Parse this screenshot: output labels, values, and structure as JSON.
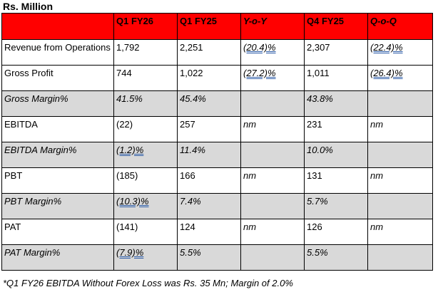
{
  "unit_label": "Rs. Million",
  "headers": [
    "",
    "Q1 FY26",
    "Q1 FY25",
    "Y-o-Y",
    "Q4 FY25",
    "Q-o-Q"
  ],
  "rows": [
    {
      "label": "Revenue from Operations",
      "q1fy26": "1,792",
      "q1fy25": "2,251",
      "yoy": "(20.4)%",
      "q4fy25": "2,307",
      "qoq": "(22.4)%"
    },
    {
      "label": "Gross Profit",
      "q1fy26": "744",
      "q1fy25": "1,022",
      "yoy": "(27.2)%",
      "q4fy25": "1,011",
      "qoq": "(26.4)%"
    },
    {
      "label": "Gross Margin%",
      "q1fy26": "41.5%",
      "q1fy25": "45.4%",
      "yoy": "",
      "q4fy25": "43.8%",
      "qoq": ""
    },
    {
      "label": "EBITDA",
      "q1fy26": "(22)",
      "q1fy25": "257",
      "yoy": "nm",
      "q4fy25": "231",
      "qoq": "nm"
    },
    {
      "label": "EBITDA Margin%",
      "q1fy26": "(1.2)%",
      "q1fy25": "11.4%",
      "yoy": "",
      "q4fy25": "10.0%",
      "qoq": ""
    },
    {
      "label": "PBT",
      "q1fy26": "(185)",
      "q1fy25": "166",
      "yoy": "nm",
      "q4fy25": "131",
      "qoq": "nm"
    },
    {
      "label": "PBT Margin%",
      "q1fy26": "(10.3)%",
      "q1fy25": "7.4%",
      "yoy": "",
      "q4fy25": "5.7%",
      "qoq": ""
    },
    {
      "label": "PAT",
      "q1fy26": "(141)",
      "q1fy25": "124",
      "yoy": "nm",
      "q4fy25": "126",
      "qoq": "nm"
    },
    {
      "label": "PAT Margin%",
      "q1fy26": "(7.9)%",
      "q1fy25": "5.5%",
      "yoy": "",
      "q4fy25": "5.5%",
      "qoq": ""
    }
  ],
  "footnote": "*Q1 FY26 EBITDA Without Forex Loss was Rs. 35 Mn; Margin of 2.0%",
  "colors": {
    "header_bg": "#ff0000",
    "shade_bg": "#d9d9d9",
    "underline": "#2f5ea8"
  }
}
